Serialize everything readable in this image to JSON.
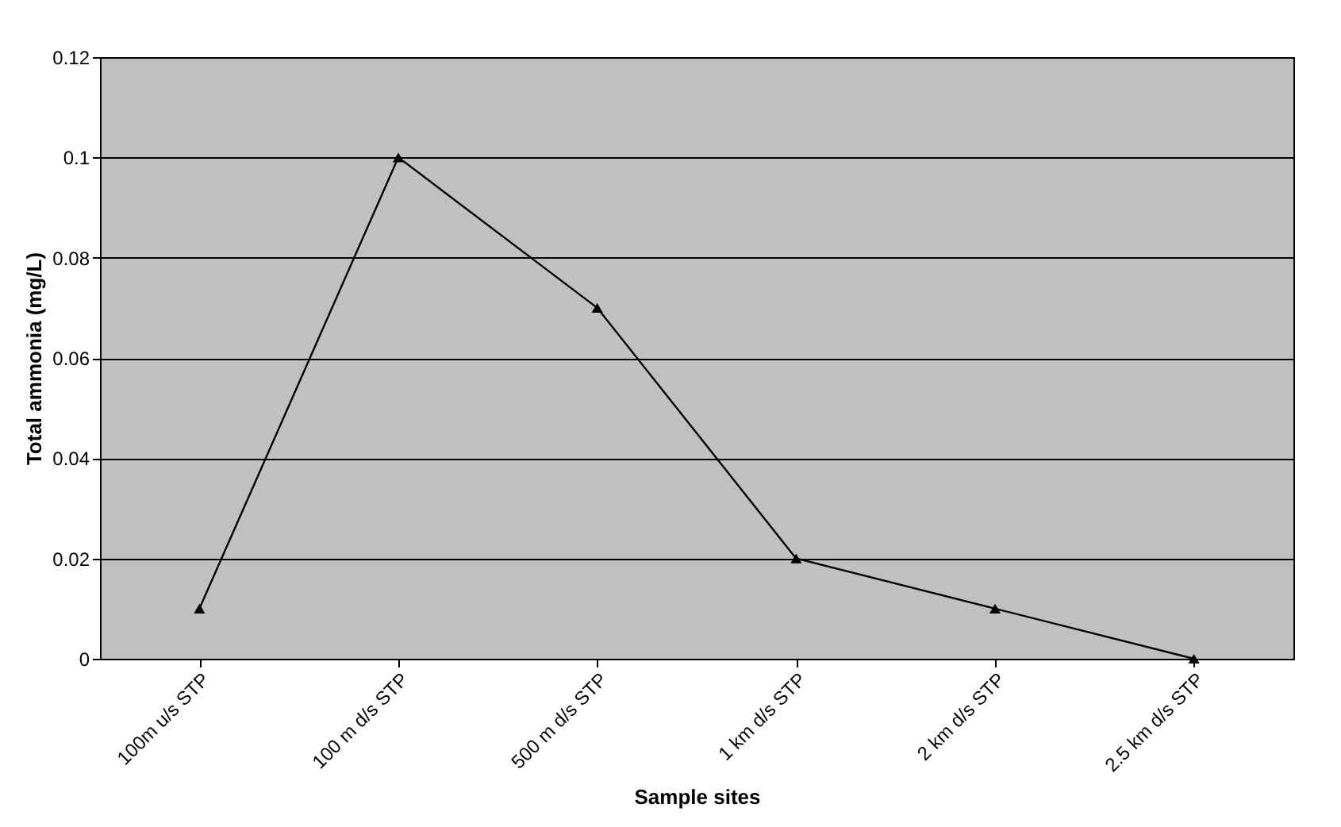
{
  "chart_data": {
    "type": "line",
    "xlabel": "Sample sites",
    "ylabel": "Total ammonia (mg/L)",
    "categories": [
      "100m u/s STP",
      "100 m d/s STP",
      "500 m d/s STP",
      "1 km d/s STP",
      "2 km d/s STP",
      "2.5 km d/s STP"
    ],
    "series": [
      {
        "color": "#000000",
        "values": [
          0.01,
          0.1,
          0.07,
          0.02,
          0.01,
          0
        ]
      }
    ],
    "ylim": [
      0,
      0.12
    ],
    "yticks": [
      0,
      0.02,
      0.04,
      0.06,
      0.08,
      0.1,
      0.12
    ],
    "grid": "y",
    "marker": "triangle",
    "line_style": "solid"
  }
}
